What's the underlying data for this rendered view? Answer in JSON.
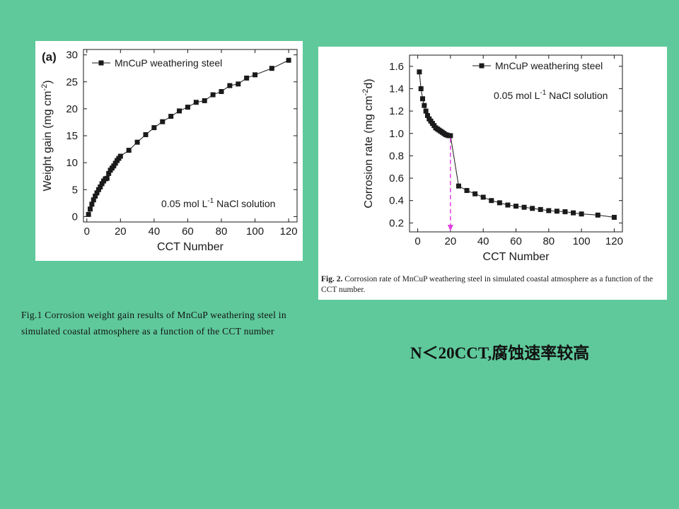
{
  "caption_fig1": "Fig.1 Corrosion weight gain results of MnCuP weathering steel in simulated coastal atmosphere as a function of the CCT number",
  "caption_fig2": {
    "label": "Fig. 2.",
    "text": "Corrosion rate of MnCuP weathering steel in simulated coastal atmosphere as a function of the CCT number."
  },
  "note": "N＜20CCT,腐蚀速率较高",
  "colors": {
    "background": "#5fc99b",
    "series": "#1a1a1a",
    "marker_line": "#e040e0"
  },
  "chart_data": [
    {
      "type": "line",
      "panel_label": "(a)",
      "xlabel": "CCT Number",
      "ylabel": "Weight gain (mg cm",
      "ylabel_sup": "-2",
      "ylabel_end": ")",
      "annotation": {
        "pre": "0.05 mol L",
        "sup": "-1",
        "post": " NaCl solution"
      },
      "xlim": [
        -2,
        125
      ],
      "ylim": [
        -1,
        31
      ],
      "xticks": [
        0,
        20,
        40,
        60,
        80,
        100,
        120
      ],
      "yticks": [
        0,
        5,
        10,
        15,
        20,
        25,
        30
      ],
      "legend_position": "top-left",
      "series": [
        {
          "name": "MnCuP weathering steel",
          "x": [
            1,
            2,
            3,
            4,
            5,
            6,
            7,
            8,
            9,
            10,
            11,
            12,
            13,
            14,
            15,
            16,
            17,
            18,
            19,
            20,
            25,
            30,
            35,
            40,
            45,
            50,
            55,
            60,
            65,
            70,
            75,
            80,
            85,
            90,
            95,
            100,
            110,
            120
          ],
          "y": [
            0.4,
            1.4,
            2.3,
            3.1,
            3.8,
            4.4,
            5.0,
            5.5,
            6.1,
            6.6,
            7.0,
            7.1,
            8.0,
            8.6,
            9.0,
            9.4,
            9.9,
            10.4,
            10.8,
            11.2,
            12.3,
            13.8,
            15.2,
            16.5,
            17.6,
            18.6,
            19.6,
            20.3,
            21.2,
            21.5,
            22.6,
            23.2,
            24.3,
            24.6,
            25.7,
            26.3,
            27.5,
            29.0
          ]
        }
      ]
    },
    {
      "type": "line",
      "xlabel": "CCT Number",
      "ylabel": "Corrosion rate (mg cm",
      "ylabel_sup": "-2",
      "ylabel_end": "d)",
      "annotation": {
        "pre": "0.05 mol L",
        "sup": "-1",
        "post": " NaCl solution"
      },
      "xlim": [
        -5,
        125
      ],
      "ylim": [
        0.12,
        1.7
      ],
      "xticks": [
        0,
        20,
        40,
        60,
        80,
        100,
        120
      ],
      "yticks": [
        0.2,
        0.4,
        0.6,
        0.8,
        1.0,
        1.2,
        1.4,
        1.6
      ],
      "ytick_labels": [
        "0.2",
        "0.4",
        "0.6",
        "0.8",
        "1.0",
        "1.2",
        "1.4",
        "1.6"
      ],
      "legend_position": "top-right",
      "vertical_marker_x": 20,
      "series": [
        {
          "name": "MnCuP weathering steel",
          "x": [
            1,
            2,
            3,
            4,
            5,
            6,
            7,
            8,
            9,
            10,
            11,
            12,
            13,
            14,
            15,
            16,
            17,
            18,
            19,
            20,
            25,
            30,
            35,
            40,
            45,
            50,
            55,
            60,
            65,
            70,
            75,
            80,
            85,
            90,
            95,
            100,
            110,
            120
          ],
          "y": [
            1.55,
            1.4,
            1.31,
            1.25,
            1.2,
            1.16,
            1.13,
            1.11,
            1.09,
            1.07,
            1.05,
            1.04,
            1.03,
            1.02,
            1.01,
            1.0,
            0.99,
            0.985,
            0.98,
            0.98,
            0.53,
            0.49,
            0.46,
            0.43,
            0.4,
            0.38,
            0.36,
            0.35,
            0.34,
            0.33,
            0.32,
            0.31,
            0.305,
            0.3,
            0.29,
            0.28,
            0.27,
            0.25
          ]
        }
      ]
    }
  ]
}
